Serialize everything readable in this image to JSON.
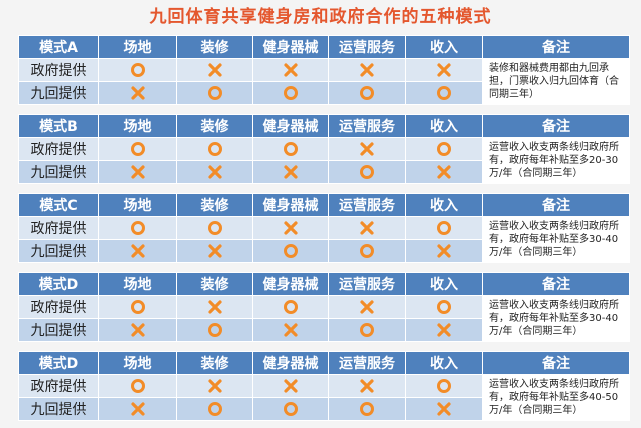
{
  "title": "九回体育共享健身房和政府合作的五种模式",
  "tables": [
    {
      "header": [
        "模式A",
        "场地",
        "装修",
        "健身器械",
        "运营服务",
        "收入",
        "备注"
      ],
      "rows": [
        {
          "label": "政府提供",
          "marks": [
            "O",
            "X",
            "X",
            "X",
            "X"
          ]
        },
        {
          "label": "九回提供",
          "marks": [
            "X",
            "O",
            "O",
            "O",
            "O"
          ]
        }
      ],
      "note": "装修和器械费用都由九回承担，门票收入归九回体育（合同期三年）"
    },
    {
      "header": [
        "模式B",
        "场地",
        "装修",
        "健身器械",
        "运营服务",
        "收入",
        "备注"
      ],
      "rows": [
        {
          "label": "政府提供",
          "marks": [
            "O",
            "O",
            "O",
            "X",
            "O"
          ]
        },
        {
          "label": "九回提供",
          "marks": [
            "X",
            "X",
            "X",
            "O",
            "X"
          ]
        }
      ],
      "note": "运营收入收支两条线归政府所有，政府每年补贴至多20-30万/年（合同期三年）"
    },
    {
      "header": [
        "模式C",
        "场地",
        "装修",
        "健身器械",
        "运营服务",
        "收入",
        "备注"
      ],
      "rows": [
        {
          "label": "政府提供",
          "marks": [
            "O",
            "O",
            "X",
            "X",
            "O"
          ]
        },
        {
          "label": "九回提供",
          "marks": [
            "X",
            "X",
            "O",
            "O",
            "X"
          ]
        }
      ],
      "note": "运营收入收支两条线归政府所有，政府每年补贴至多30-40万/年（合同期三年）"
    },
    {
      "header": [
        "模式D",
        "场地",
        "装修",
        "健身器械",
        "运营服务",
        "收入",
        "备注"
      ],
      "rows": [
        {
          "label": "政府提供",
          "marks": [
            "O",
            "X",
            "O",
            "X",
            "O"
          ]
        },
        {
          "label": "九回提供",
          "marks": [
            "X",
            "O",
            "X",
            "O",
            "X"
          ]
        }
      ],
      "note": "运营收入收支两条线归政府所有，政府每年补贴至多30-40万/年（合同期三年）"
    },
    {
      "header": [
        "模式D",
        "场地",
        "装修",
        "健身器械",
        "运营服务",
        "收入",
        "备注"
      ],
      "rows": [
        {
          "label": "政府提供",
          "marks": [
            "O",
            "X",
            "X",
            "X",
            "O"
          ]
        },
        {
          "label": "九回提供",
          "marks": [
            "X",
            "O",
            "O",
            "O",
            "X"
          ]
        }
      ],
      "note": "运营收入收支两条线归政府所有，政府每年补贴至多40-50万/年（合同期三年）"
    }
  ]
}
